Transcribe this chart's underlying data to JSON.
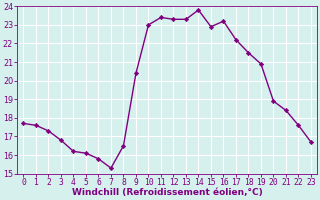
{
  "x": [
    0,
    1,
    2,
    3,
    4,
    5,
    6,
    7,
    8,
    9,
    10,
    11,
    12,
    13,
    14,
    15,
    16,
    17,
    18,
    19,
    20,
    21,
    22,
    23
  ],
  "y": [
    17.7,
    17.6,
    17.3,
    16.8,
    16.2,
    16.1,
    15.8,
    15.3,
    16.5,
    20.4,
    23.0,
    23.4,
    23.3,
    23.3,
    23.8,
    22.9,
    23.2,
    22.2,
    21.5,
    20.9,
    18.9,
    18.4,
    17.6,
    16.7
  ],
  "line_color": "#800080",
  "marker": "D",
  "marker_size": 2.2,
  "linewidth": 1.0,
  "ylim": [
    15,
    24
  ],
  "yticks": [
    15,
    16,
    17,
    18,
    19,
    20,
    21,
    22,
    23,
    24
  ],
  "xlim": [
    -0.5,
    23.5
  ],
  "xticks": [
    0,
    1,
    2,
    3,
    4,
    5,
    6,
    7,
    8,
    9,
    10,
    11,
    12,
    13,
    14,
    15,
    16,
    17,
    18,
    19,
    20,
    21,
    22,
    23
  ],
  "xlabel": "Windchill (Refroidissement éolien,°C)",
  "background_color": "#d6f0ee",
  "grid_color": "#ffffff",
  "tick_color": "#800080",
  "label_color": "#800080",
  "xlabel_fontsize": 6.5,
  "tick_fontsize": 5.8
}
